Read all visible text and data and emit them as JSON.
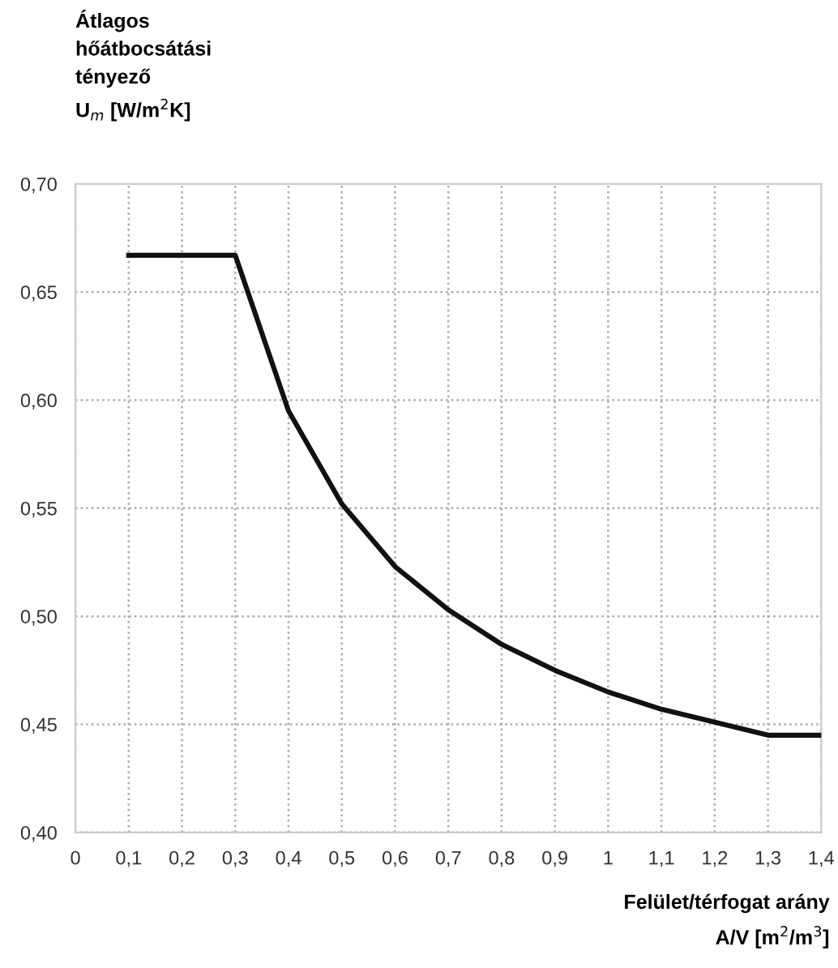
{
  "chart_data": {
    "type": "line",
    "ylabel": "Átlagos\nhőátbocsátási\ntényező\nU$_{m}$ [W/m$^{2}$K]",
    "xlabel": "Felület/térfogat arány\nA/V [m$^{2}$/m$^{3}$]",
    "x": [
      0.1,
      0.2,
      0.3,
      0.4,
      0.5,
      0.6,
      0.7,
      0.8,
      0.9,
      1.0,
      1.1,
      1.2,
      1.3,
      1.4
    ],
    "series": [
      {
        "color": "#111111",
        "values": [
          0.667,
          0.667,
          0.667,
          0.595,
          0.552,
          0.523,
          0.503,
          0.487,
          0.475,
          0.465,
          0.457,
          0.451,
          0.445,
          0.445
        ]
      }
    ],
    "xlim": [
      0,
      1.4
    ],
    "xticks": [
      0,
      {
        "value": 0.1,
        "label": "0,1"
      },
      {
        "value": 0.2,
        "label": "0,2"
      },
      {
        "value": 0.3,
        "label": "0,3"
      },
      {
        "value": 0.4,
        "label": "0,4"
      },
      {
        "value": 0.5,
        "label": "0,5"
      },
      {
        "value": 0.6,
        "label": "0,6"
      },
      {
        "value": 0.7,
        "label": "0,7"
      },
      {
        "value": 0.8,
        "label": "0,8"
      },
      {
        "value": 0.9,
        "label": "0,9"
      },
      1,
      {
        "value": 1.1,
        "label": "1,1"
      },
      {
        "value": 1.2,
        "label": "1,2"
      },
      {
        "value": 1.3,
        "label": "1,3"
      },
      {
        "value": 1.4,
        "label": "1,4"
      }
    ],
    "ylim": [
      0.4,
      0.7
    ],
    "yticks": [
      {
        "value": 0.4,
        "label": "0,40"
      },
      {
        "value": 0.45,
        "label": "0,45"
      },
      {
        "value": 0.5,
        "label": "0,50"
      },
      {
        "value": 0.55,
        "label": "0,55"
      },
      {
        "value": 0.6,
        "label": "0,60"
      },
      {
        "value": 0.65,
        "label": "0,65"
      },
      {
        "value": 0.7,
        "label": "0,70"
      }
    ],
    "grid": true,
    "line_style": "solid",
    "marker": "none"
  }
}
